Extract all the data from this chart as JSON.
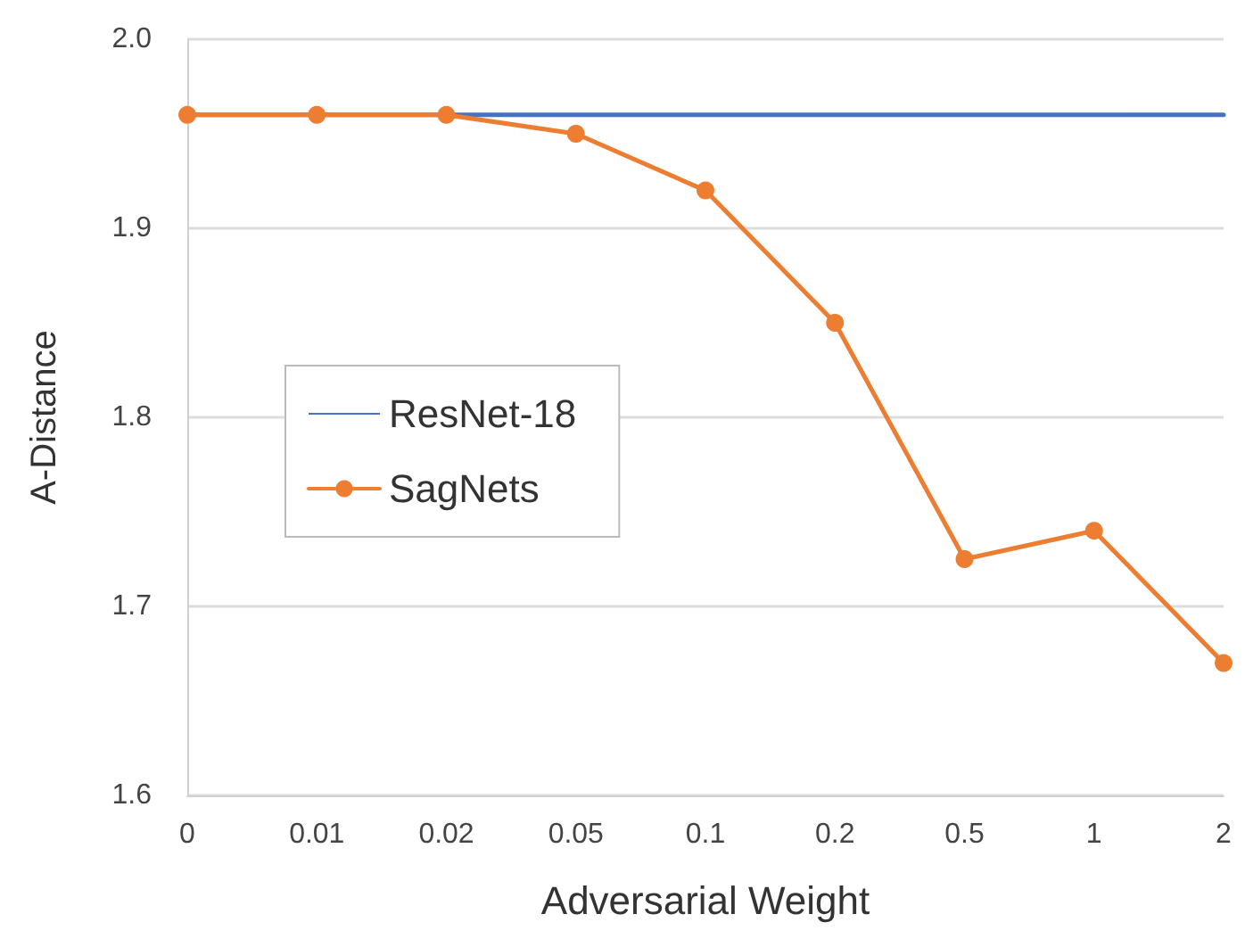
{
  "chart_data": {
    "type": "line",
    "xlabel": "Adversarial Weight",
    "ylabel": "A-Distance",
    "categories": [
      "0",
      "0.01",
      "0.02",
      "0.05",
      "0.1",
      "0.2",
      "0.5",
      "1",
      "2"
    ],
    "series": [
      {
        "name": "ResNet-18",
        "color": "#4472c4",
        "values": [
          1.96,
          1.96,
          1.96,
          1.96,
          1.96,
          1.96,
          1.96,
          1.96,
          1.96
        ],
        "marker": "none"
      },
      {
        "name": "SagNets",
        "color": "#ed7d31",
        "values": [
          1.96,
          1.96,
          1.96,
          1.95,
          1.92,
          1.85,
          1.725,
          1.74,
          1.67
        ],
        "marker": "circle"
      }
    ],
    "ylim": [
      1.6,
      2.0
    ],
    "yticks": [
      1.6,
      1.7,
      1.8,
      1.9,
      {
        "value": 2,
        "label": "2.0"
      }
    ],
    "grid": "y",
    "legend": "left"
  }
}
